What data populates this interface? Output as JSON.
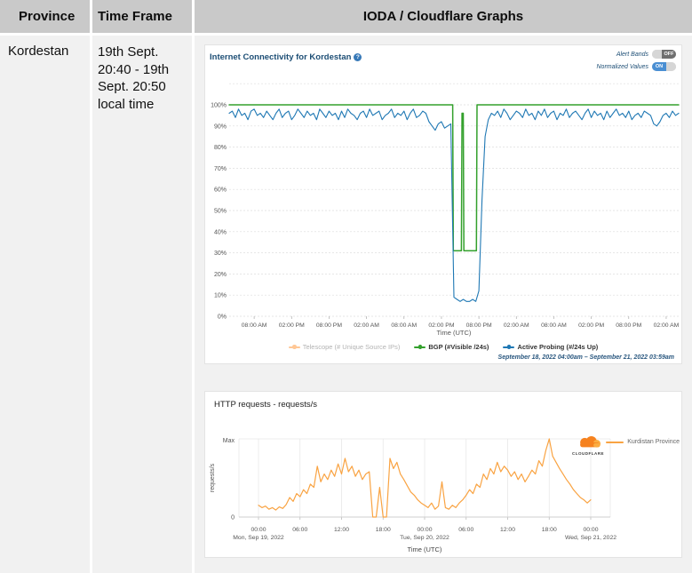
{
  "table": {
    "headers": {
      "province": "Province",
      "time_frame": "Time Frame",
      "graphs": "IODA / Cloudflare Graphs"
    },
    "row": {
      "province": "Kordestan",
      "time_frame": "19th Sept. 20:40 - 19th Sept. 20:50 local time"
    }
  },
  "ioda": {
    "help_icon": "?",
    "toggles": [
      {
        "label": "Alert Bands",
        "state": "OFF"
      },
      {
        "label": "Normalized Values",
        "state": "ON"
      }
    ]
  },
  "cloudflare": {
    "logo_text": "CLOUDFLARE"
  },
  "chart_data": [
    {
      "type": "line",
      "title": "Internet Connectivity for Kordestan",
      "xlabel": "Time (UTC)",
      "x_unit": "hours since Sep 18 2022 04:00am UTC",
      "xlim": [
        0,
        72
      ],
      "ylim": [
        0,
        110
      ],
      "y_tick_percents": [
        0,
        10,
        20,
        30,
        40,
        50,
        60,
        70,
        80,
        90,
        100
      ],
      "grid": "dashed horizontal every 10%",
      "legend_position": "bottom",
      "footnote": "September 18, 2022 04:00am – September 21, 2022 03:59am",
      "x_ticks": [
        {
          "h": 4,
          "label": "08:00 AM"
        },
        {
          "h": 10,
          "label": "02:00 PM"
        },
        {
          "h": 16,
          "label": "08:00 PM"
        },
        {
          "h": 22,
          "label": "02:00 AM"
        },
        {
          "h": 28,
          "label": "08:00 AM"
        },
        {
          "h": 34,
          "label": "02:00 PM"
        },
        {
          "h": 40,
          "label": "08:00 PM"
        },
        {
          "h": 46,
          "label": "02:00 AM"
        },
        {
          "h": 52,
          "label": "08:00 AM"
        },
        {
          "h": 58,
          "label": "02:00 PM"
        },
        {
          "h": 64,
          "label": "08:00 PM"
        },
        {
          "h": 70,
          "label": "02:00 AM"
        }
      ],
      "series": [
        {
          "name": "Telescope (# Unique Source IPs)",
          "color": "#ff9b41",
          "disabled": true,
          "points": []
        },
        {
          "name": "BGP (#Visible /24s)",
          "color": "#33a02c",
          "width": 1.5,
          "points": [
            [
              0,
              100
            ],
            [
              35.8,
              100
            ],
            [
              35.9,
              31
            ],
            [
              37.2,
              31
            ],
            [
              37.3,
              96
            ],
            [
              37.5,
              96
            ],
            [
              37.6,
              31
            ],
            [
              39.6,
              31
            ],
            [
              39.7,
              100
            ],
            [
              72,
              100
            ]
          ]
        },
        {
          "name": "Active Probing (#/24s Up)",
          "color": "#1f78b4",
          "width": 1.1,
          "x_start": 0,
          "x_step": 0.5,
          "values": [
            96,
            97,
            94,
            98,
            95,
            96,
            93,
            97,
            98,
            95,
            96,
            94,
            97,
            95,
            93,
            96,
            98,
            94,
            96,
            97,
            93,
            95,
            98,
            96,
            94,
            97,
            95,
            96,
            93,
            98,
            96,
            94,
            97,
            95,
            96,
            93,
            97,
            94,
            98,
            96,
            95,
            93,
            96,
            97,
            94,
            98,
            95,
            96,
            97,
            93,
            95,
            96,
            98,
            94,
            96,
            95,
            97,
            93,
            96,
            98,
            94,
            95,
            97,
            96,
            92,
            90,
            88,
            91,
            92,
            89,
            90,
            91,
            9,
            8,
            7,
            8,
            7,
            7,
            8,
            7,
            12,
            55,
            85,
            93,
            96,
            95,
            97,
            94,
            98,
            96,
            93,
            95,
            97,
            96,
            94,
            98,
            95,
            96,
            93,
            97,
            95,
            98,
            94,
            96,
            97,
            93,
            96,
            95,
            98,
            94,
            96,
            97,
            95,
            93,
            96,
            98,
            94,
            97,
            95,
            96,
            93,
            97,
            94,
            96,
            98,
            95,
            96,
            94,
            97,
            93,
            95,
            96,
            94,
            97,
            96,
            95,
            91,
            90,
            92,
            95,
            96,
            94,
            97,
            95,
            96
          ]
        }
      ]
    },
    {
      "type": "line",
      "title": "HTTP requests - requests/s",
      "xlabel": "Time (UTC)",
      "ylabel": "requests/s",
      "y_axis_labels": [
        "Max",
        "0"
      ],
      "x_unit": "hours since Sep 19 2022 00:00 UTC",
      "xlim": [
        0,
        48
      ],
      "ylim": [
        0,
        100
      ],
      "legend_position": "top-right",
      "x_ticks": [
        {
          "h": 0,
          "label": "00:00",
          "date": "Mon, Sep 19, 2022"
        },
        {
          "h": 6,
          "label": "06:00"
        },
        {
          "h": 12,
          "label": "12:00"
        },
        {
          "h": 18,
          "label": "18:00"
        },
        {
          "h": 24,
          "label": "00:00",
          "date": "Tue, Sep 20, 2022"
        },
        {
          "h": 30,
          "label": "06:00"
        },
        {
          "h": 36,
          "label": "12:00"
        },
        {
          "h": 42,
          "label": "18:00"
        },
        {
          "h": 48,
          "label": "00:00",
          "date": "Wed, Sep 21, 2022"
        }
      ],
      "series": [
        {
          "name": "Kurdistan Province",
          "color": "#f9a342",
          "width": 1.2,
          "x_start": 0,
          "x_step": 0.5,
          "values": [
            15,
            12,
            14,
            10,
            12,
            9,
            13,
            11,
            16,
            25,
            20,
            30,
            26,
            35,
            30,
            42,
            38,
            65,
            45,
            55,
            48,
            60,
            52,
            68,
            55,
            75,
            58,
            65,
            52,
            60,
            48,
            55,
            58,
            0,
            0,
            38,
            0,
            0,
            75,
            62,
            70,
            55,
            48,
            40,
            32,
            28,
            22,
            18,
            15,
            12,
            18,
            10,
            14,
            45,
            12,
            10,
            15,
            12,
            18,
            22,
            28,
            35,
            30,
            42,
            38,
            55,
            48,
            62,
            55,
            70,
            58,
            65,
            60,
            52,
            58,
            48,
            55,
            45,
            52,
            60,
            55,
            72,
            65,
            85,
            100,
            78,
            70,
            62,
            55,
            48,
            42,
            35,
            30,
            25,
            22,
            18,
            22
          ]
        }
      ]
    }
  ]
}
